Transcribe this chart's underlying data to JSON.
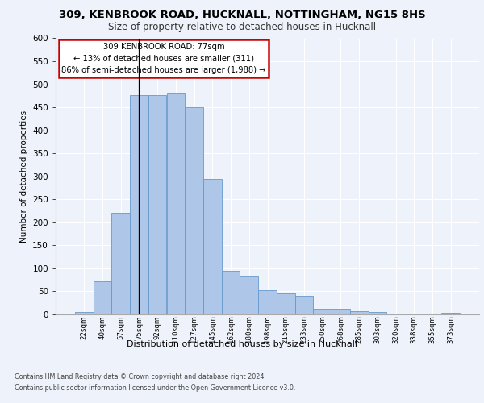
{
  "title_line1": "309, KENBROOK ROAD, HUCKNALL, NOTTINGHAM, NG15 8HS",
  "title_line2": "Size of property relative to detached houses in Hucknall",
  "xlabel": "Distribution of detached houses by size in Hucknall",
  "ylabel": "Number of detached properties",
  "categories": [
    "22sqm",
    "40sqm",
    "57sqm",
    "75sqm",
    "92sqm",
    "110sqm",
    "127sqm",
    "145sqm",
    "162sqm",
    "180sqm",
    "198sqm",
    "215sqm",
    "233sqm",
    "250sqm",
    "268sqm",
    "285sqm",
    "303sqm",
    "320sqm",
    "338sqm",
    "355sqm",
    "373sqm"
  ],
  "values": [
    5,
    72,
    220,
    476,
    477,
    480,
    450,
    295,
    95,
    82,
    53,
    46,
    40,
    13,
    12,
    7,
    5,
    0,
    0,
    0,
    4
  ],
  "bar_color": "#aec6e8",
  "bar_edge_color": "#6699cc",
  "annotation_title": "309 KENBROOK ROAD: 77sqm",
  "annotation_line2": "← 13% of detached houses are smaller (311)",
  "annotation_line3": "86% of semi-detached houses are larger (1,988) →",
  "annotation_color": "#cc0000",
  "vline_x_index": 3,
  "ylim": [
    0,
    600
  ],
  "yticks": [
    0,
    50,
    100,
    150,
    200,
    250,
    300,
    350,
    400,
    450,
    500,
    550,
    600
  ],
  "footnote1": "Contains HM Land Registry data © Crown copyright and database right 2024.",
  "footnote2": "Contains public sector information licensed under the Open Government Licence v3.0.",
  "background_color": "#eef3fb",
  "plot_bg_color": "#eef3fb"
}
